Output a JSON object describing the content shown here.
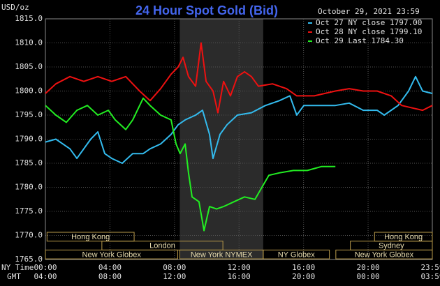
{
  "chart_data": {
    "type": "line",
    "title": "24 Hour Spot Gold (Bid)",
    "date": "October 29, 2021 23:59",
    "ylabel": "USD/oz",
    "xlabel": "NY Time",
    "x2label": "GMT",
    "background": "#000000",
    "grid": true,
    "legend": "upper right",
    "xlim": [
      0,
      23.98
    ],
    "ylim": [
      1765,
      1815
    ],
    "yticks": [
      {
        "value": 1765,
        "label": "1765.0"
      },
      {
        "value": 1770,
        "label": "1770.0"
      },
      {
        "value": 1775,
        "label": "1775.0"
      },
      {
        "value": 1780,
        "label": "1780.0"
      },
      {
        "value": 1785,
        "label": "1785.0"
      },
      {
        "value": 1790,
        "label": "1790.0"
      },
      {
        "value": 1795,
        "label": "1795.0"
      },
      {
        "value": 1800,
        "label": "1800.0"
      },
      {
        "value": 1805,
        "label": "1805.0"
      },
      {
        "value": 1810,
        "label": "1810.0"
      },
      {
        "value": 1815,
        "label": "1815.0"
      }
    ],
    "xticks": [
      {
        "value": 0,
        "label": "00:00"
      },
      {
        "value": 4,
        "label": "04:00"
      },
      {
        "value": 8,
        "label": "08:00"
      },
      {
        "value": 12,
        "label": "12:00"
      },
      {
        "value": 16,
        "label": "16:00"
      },
      {
        "value": 20,
        "label": "20:00"
      },
      {
        "value": 23.98,
        "label": "23:59"
      }
    ],
    "x2ticks": [
      {
        "value": 0,
        "label": "04:00"
      },
      {
        "value": 4,
        "label": "08:00"
      },
      {
        "value": 8,
        "label": "12:00"
      },
      {
        "value": 12,
        "label": "16:00"
      },
      {
        "value": 16,
        "label": "20:00"
      },
      {
        "value": 20,
        "label": "00:00"
      },
      {
        "value": 23.98,
        "label": "03:59"
      }
    ],
    "highlight": [
      8.33,
      13.5
    ],
    "sessions": [
      {
        "name": "Hong Kong",
        "start": 0.1,
        "end": 5.5,
        "row": 0
      },
      {
        "name": "Hong Kong",
        "start": 20.4,
        "end": 23.98,
        "row": 0
      },
      {
        "name": "London",
        "start": 3.5,
        "end": 11,
        "row": 1
      },
      {
        "name": "Sydney",
        "start": 18.9,
        "end": 23.98,
        "row": 1
      },
      {
        "name": "New York Globex",
        "start": 0,
        "end": 8.2,
        "row": 2
      },
      {
        "name": "New York NYMEX",
        "start": 8.33,
        "end": 13.5,
        "row": 2
      },
      {
        "name": "NY Globex",
        "start": 13.5,
        "end": 17.6,
        "row": 2
      },
      {
        "name": "New York Globex",
        "start": 18,
        "end": 23.98,
        "row": 2
      }
    ],
    "series": [
      {
        "name": "Oct 27 NY close 1797.00",
        "color": "#33bbee",
        "x": [
          0,
          0.65,
          1.52,
          1.95,
          2.81,
          3.25,
          3.68,
          4.11,
          4.76,
          5.41,
          6.06,
          6.49,
          7.14,
          7.79,
          8.23,
          8.66,
          9.31,
          9.74,
          10.17,
          10.39,
          10.82,
          11.26,
          11.9,
          12.77,
          13.64,
          14.5,
          15.15,
          15.58,
          16.02,
          17.1,
          17.97,
          18.83,
          19.7,
          20.56,
          21.0,
          21.86,
          22.51,
          22.94,
          23.38,
          23.98
        ],
        "values": [
          1789.4,
          1790,
          1788,
          1786,
          1790,
          1791.5,
          1787,
          1786,
          1785,
          1787,
          1787,
          1788,
          1789,
          1791,
          1793,
          1794,
          1795,
          1796,
          1791,
          1786,
          1791,
          1793,
          1795,
          1795.5,
          1797,
          1798,
          1799,
          1795,
          1797,
          1797,
          1797,
          1797.5,
          1796,
          1796,
          1795,
          1797,
          1800,
          1803,
          1800,
          1799.5
        ]
      },
      {
        "name": "Oct 28 NY close 1799.10",
        "color": "#ee1111",
        "x": [
          0,
          0.65,
          1.52,
          2.38,
          3.25,
          4.11,
          4.98,
          5.84,
          6.49,
          7.14,
          7.79,
          8.23,
          8.53,
          8.87,
          9.31,
          9.65,
          9.96,
          10.39,
          10.69,
          11.04,
          11.47,
          11.9,
          12.34,
          12.77,
          13.2,
          14.07,
          14.94,
          15.58,
          16.67,
          17.97,
          18.83,
          19.7,
          20.56,
          21.43,
          22.08,
          22.73,
          23.38,
          23.98
        ],
        "values": [
          1799.5,
          1801.5,
          1803,
          1802,
          1803,
          1802,
          1803,
          1800,
          1798,
          1800.5,
          1803.5,
          1805,
          1807,
          1803,
          1801,
          1810,
          1802,
          1800,
          1795.5,
          1802,
          1799,
          1803,
          1804,
          1803,
          1801,
          1801.5,
          1800.5,
          1799,
          1799,
          1800,
          1800.5,
          1800,
          1800,
          1799,
          1797,
          1796.5,
          1796,
          1797
        ]
      },
      {
        "name": "Oct 29 Last 1784.30",
        "color": "#22ee22",
        "x": [
          0,
          0.65,
          1.3,
          1.95,
          2.6,
          3.25,
          3.9,
          4.33,
          4.98,
          5.41,
          6.06,
          6.49,
          7.14,
          7.79,
          8.1,
          8.35,
          8.66,
          8.87,
          9.09,
          9.52,
          9.83,
          10.17,
          10.61,
          11.04,
          11.69,
          12.34,
          12.99,
          13.42,
          13.85,
          14.5,
          15.37,
          16.23,
          17.1,
          17.97
        ],
        "values": [
          1797,
          1795,
          1793.5,
          1796,
          1797,
          1795,
          1796,
          1794,
          1792,
          1794,
          1798.5,
          1797,
          1795,
          1794,
          1789,
          1787,
          1789,
          1783,
          1778,
          1777,
          1771,
          1776,
          1775.5,
          1776,
          1777,
          1778,
          1777.5,
          1780,
          1782.5,
          1783,
          1783.5,
          1783.5,
          1784.3,
          1784.3
        ]
      }
    ]
  }
}
